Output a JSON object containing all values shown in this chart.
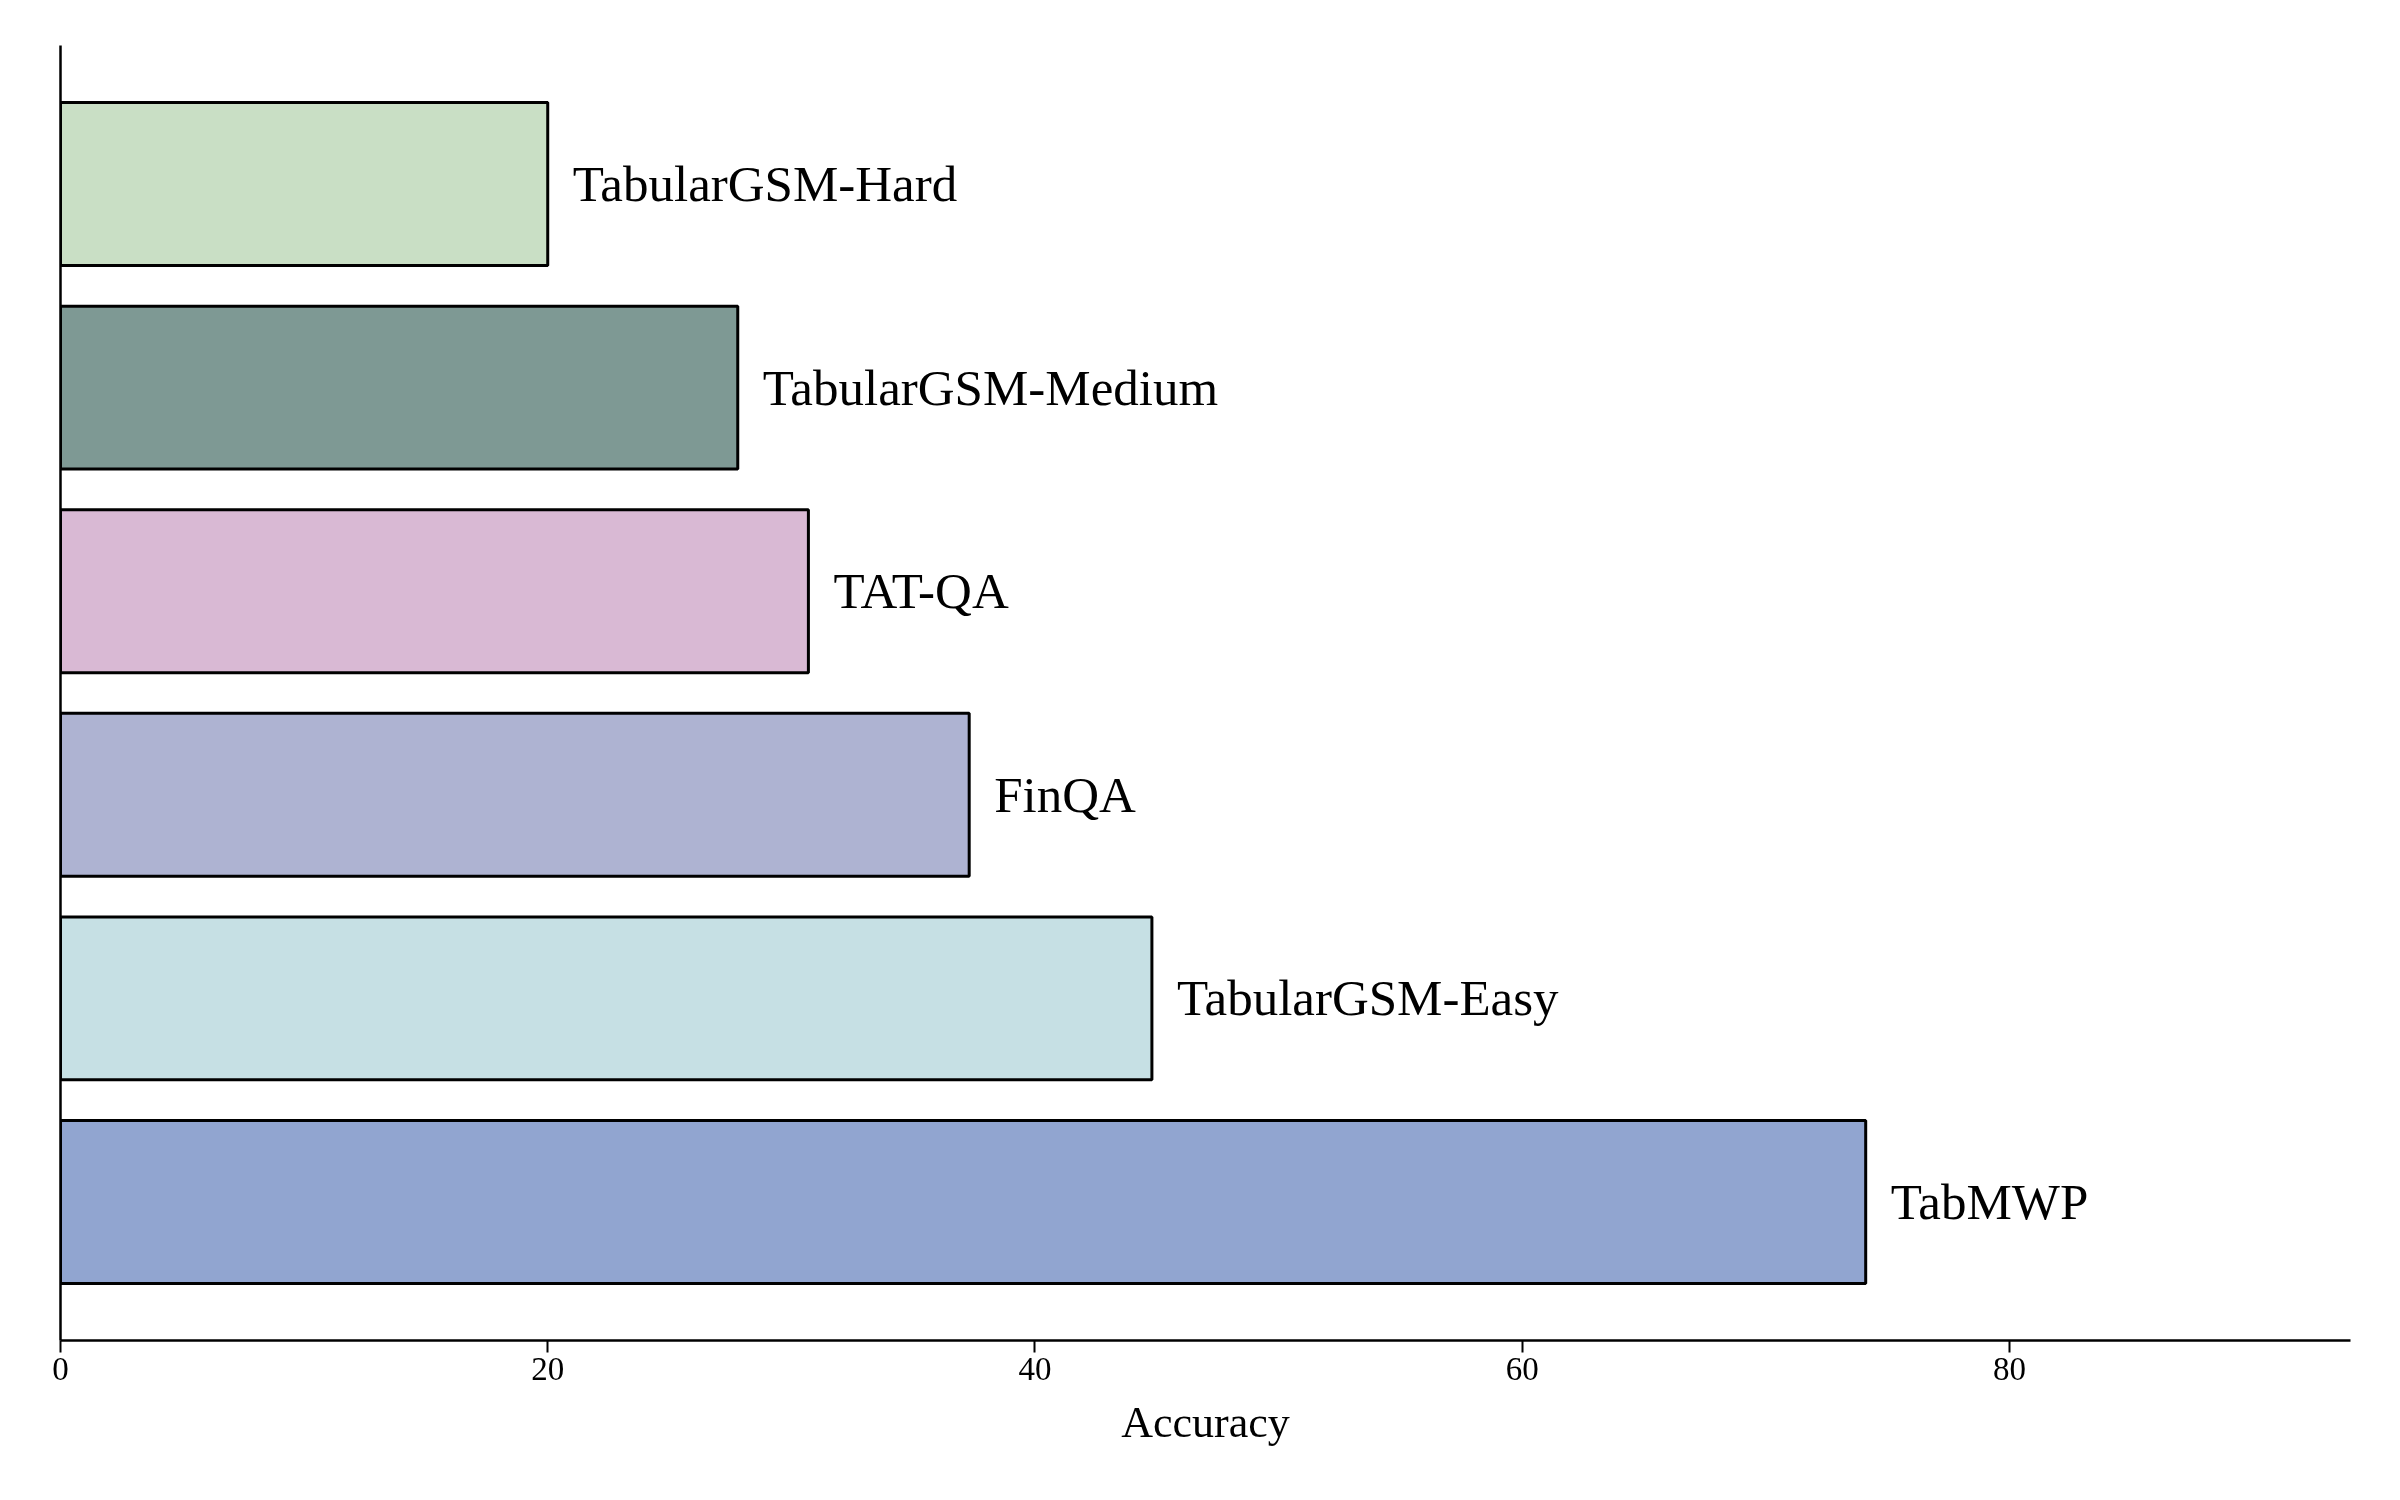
{
  "chart_data": {
    "type": "bar",
    "orientation": "horizontal",
    "xlabel": "Accuracy",
    "categories": [
      "TabularGSM-Hard",
      "TabularGSM-Medium",
      "TAT-QA",
      "FinQA",
      "TabularGSM-Easy",
      "TabMWP"
    ],
    "values": [
      20.0,
      27.8,
      30.7,
      37.3,
      44.8,
      74.1
    ],
    "colors": [
      "#c9dfc5",
      "#7e9994",
      "#d9b9d4",
      "#aeb3d2",
      "#c6e0e4",
      "#91a5d0"
    ],
    "xlim": [
      0,
      94
    ],
    "xticks": [
      0,
      20,
      40,
      60,
      80
    ],
    "tick_labels": "x",
    "grid": false
  }
}
